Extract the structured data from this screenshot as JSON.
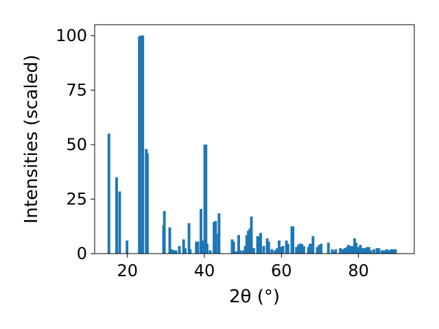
{
  "chart_data": {
    "type": "bar",
    "xlabel": "2θ (°)",
    "ylabel": "Intensities (scaled)",
    "xlim": [
      11.5,
      94.5
    ],
    "ylim": [
      0,
      105
    ],
    "x_ticks": [
      20,
      40,
      60,
      80
    ],
    "y_ticks": [
      0,
      25,
      50,
      75,
      100
    ],
    "bar_width": 0.7,
    "bar_color": "#1f77b4",
    "grid": false,
    "x": [
      15.2,
      17.2,
      18.0,
      19.9,
      23.1,
      23.4,
      23.7,
      24.0,
      24.9,
      25.2,
      29.4,
      29.6,
      31.0,
      31.5,
      32.1,
      32.6,
      33.5,
      34.6,
      35.0,
      36.0,
      36.3,
      37.9,
      38.3,
      39.1,
      39.6,
      40.1,
      40.4,
      40.7,
      41.5,
      42.5,
      42.9,
      43.6,
      43.8,
      47.2,
      47.6,
      48.3,
      48.9,
      49.3,
      50.1,
      50.6,
      51.0,
      51.4,
      51.8,
      52.2,
      52.8,
      53.8,
      54.2,
      54.6,
      55.4,
      56.3,
      56.7,
      57.5,
      58.3,
      58.9,
      59.4,
      60.0,
      60.4,
      61.3,
      61.7,
      62.7,
      63.0,
      63.9,
      64.4,
      64.8,
      65.3,
      65.8,
      67.0,
      67.4,
      67.8,
      68.2,
      69.3,
      69.8,
      70.3,
      72.2,
      73.2,
      73.7,
      74.1,
      75.3,
      76.0,
      76.5,
      77.0,
      77.4,
      78.1,
      78.6,
      79.0,
      79.4,
      80.0,
      80.5,
      81.2,
      81.7,
      82.2,
      82.7,
      83.2,
      84.0,
      84.8,
      85.3,
      86.1,
      86.6,
      87.0,
      87.4,
      88.0,
      88.5,
      89.1,
      89.6
    ],
    "values": [
      55,
      35,
      28.5,
      6,
      99.5,
      100,
      100,
      100,
      48,
      46,
      13,
      19.5,
      12,
      2,
      1.5,
      1.5,
      3.5,
      6.5,
      2.5,
      14,
      2,
      5.5,
      5.5,
      20.5,
      6,
      50,
      50,
      4.5,
      1.5,
      14.5,
      15,
      9,
      18.5,
      6.5,
      5.5,
      1,
      8.5,
      1.5,
      1.5,
      3.5,
      8.5,
      10.5,
      11.5,
      17,
      2.5,
      8,
      8,
      9.5,
      3.5,
      7,
      5.5,
      2,
      1.5,
      2.5,
      6,
      3,
      3.5,
      6,
      4.5,
      12.5,
      12.5,
      3,
      4,
      4.5,
      4.5,
      3.5,
      3,
      4.5,
      4.5,
      8,
      3,
      4,
      4.5,
      5,
      2,
      1,
      2,
      2.5,
      2,
      2.5,
      3,
      4,
      3.5,
      3.5,
      7,
      5,
      3,
      4,
      2.5,
      2.5,
      3,
      3,
      1.5,
      2,
      2.5,
      2.5,
      1.5,
      1.5,
      1.5,
      2,
      1.5,
      2,
      2,
      2
    ]
  }
}
